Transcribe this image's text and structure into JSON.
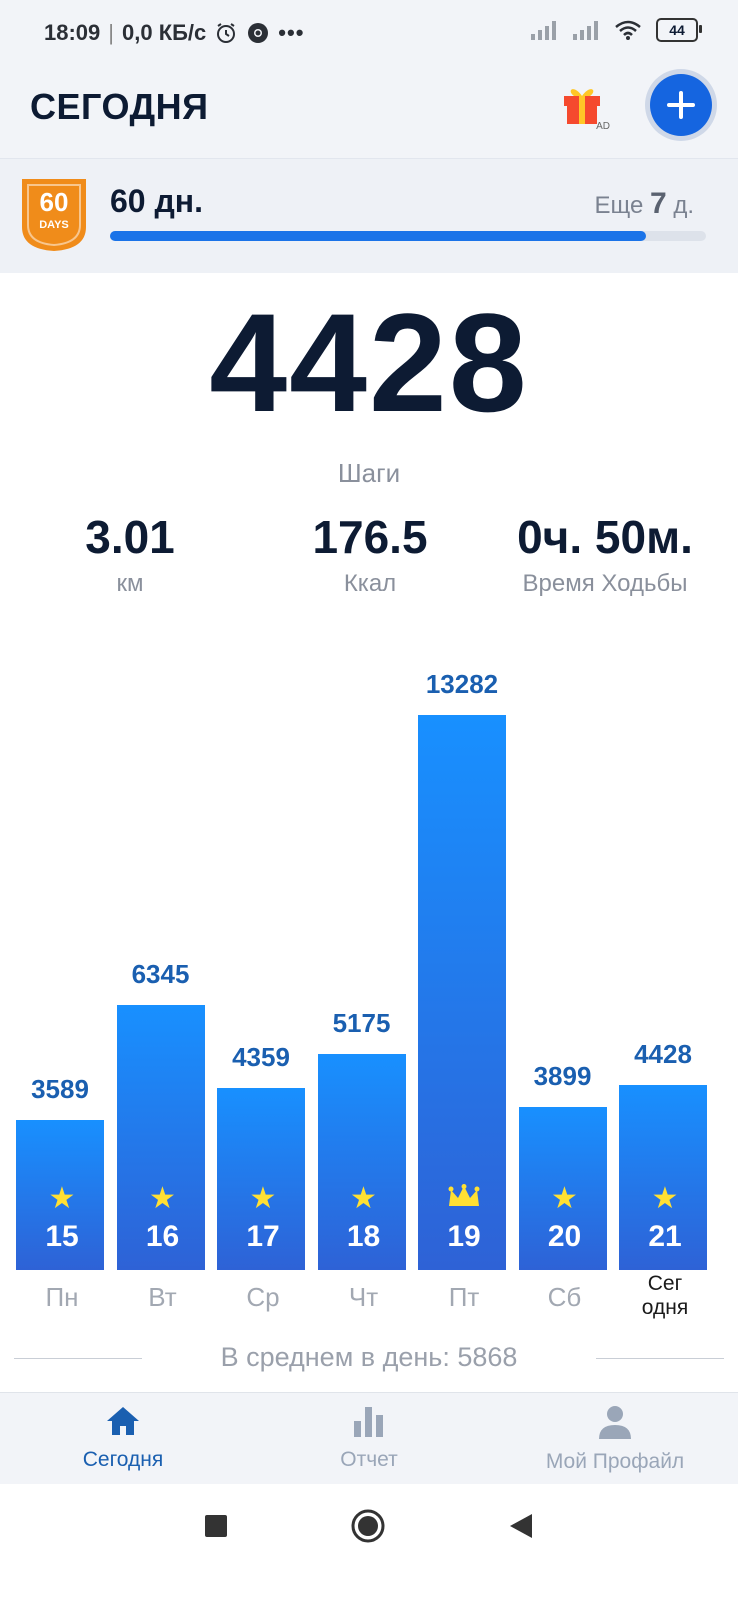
{
  "status_bar": {
    "time": "18:09",
    "network_speed": "0,0 КБ/с",
    "battery": "44",
    "icons": [
      "alarm-icon",
      "chrome-icon",
      "more-icon",
      "signal-icon",
      "signal-icon",
      "wifi-icon",
      "battery-icon"
    ]
  },
  "header": {
    "title": "СЕГОДНЯ",
    "gift_ad_label": "AD",
    "add_icon": "plus-icon"
  },
  "streak": {
    "badge_number": "60",
    "badge_sub": "DAYS",
    "label": "60 дн.",
    "remaining_prefix": "Еще",
    "remaining_value": "7",
    "remaining_suffix": "д.",
    "progress_fraction": 0.9
  },
  "today": {
    "steps": "4428",
    "steps_label": "Шаги",
    "stats": [
      {
        "value": "3.01",
        "label": "км"
      },
      {
        "value": "176.5",
        "label": "Ккал"
      },
      {
        "value": "0ч. 50м.",
        "label": "Время Ходьбы"
      }
    ]
  },
  "chart_data": {
    "type": "bar",
    "categories": [
      "Пн",
      "Вт",
      "Ср",
      "Чт",
      "Пт",
      "Сб",
      "Сег одня"
    ],
    "dates": [
      "15",
      "16",
      "17",
      "18",
      "19",
      "20",
      "21"
    ],
    "values": [
      3589,
      6345,
      4359,
      5175,
      13282,
      3899,
      4428
    ],
    "value_labels": [
      "3589",
      "6345",
      "4359",
      "5175",
      "13282",
      "3899",
      "4428"
    ],
    "markers": [
      "star-icon",
      "star-icon",
      "star-icon",
      "star-icon",
      "crown-icon",
      "star-icon",
      "star-icon"
    ],
    "today_label_lines": [
      "Сег",
      "одня"
    ],
    "bar_color_top": "#1890ff",
    "bar_color_bottom": "#2e62d6"
  },
  "average": {
    "text": "В среднем в день: 5868"
  },
  "bottom_nav": {
    "items": [
      {
        "label": "Сегодня",
        "icon": "home-icon",
        "active": true
      },
      {
        "label": "Отчет",
        "icon": "bar-chart-icon",
        "active": false
      },
      {
        "label": "Мой Профайл",
        "icon": "person-icon",
        "active": false
      }
    ]
  },
  "system_nav": {
    "icons": [
      "recent-apps-icon",
      "home-circle-icon",
      "back-icon"
    ]
  },
  "colors": {
    "accent": "#1565e0",
    "badge_orange": "#f08c1a",
    "text_dark": "#0d1b33",
    "text_muted": "#8a909c"
  }
}
